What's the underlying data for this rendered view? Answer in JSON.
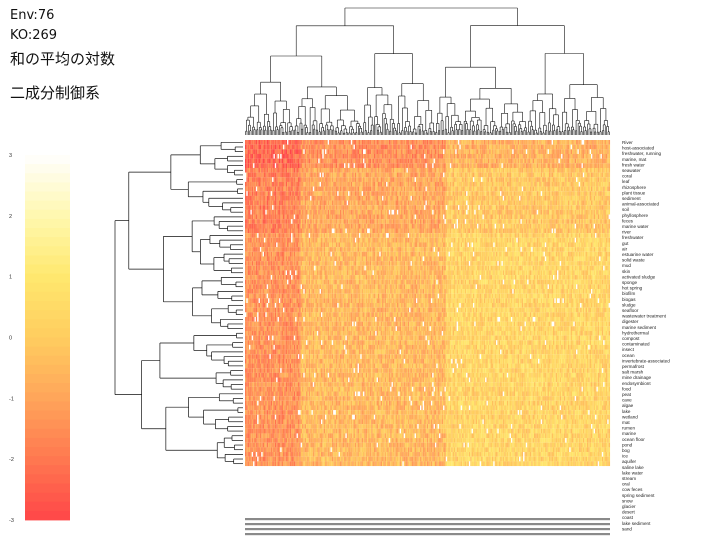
{
  "title_lines": {
    "env": "Env:76",
    "ko": "KO:269",
    "measure": "和の平均の対数",
    "method": "二成分制御系"
  },
  "chart_data": {
    "type": "heatmap",
    "title": "",
    "row_labels": [
      "River",
      "host-associated",
      "freshwater, running",
      "marine, mat",
      "fresh water",
      "seawater",
      "coral",
      "leaf",
      "rhizosphere",
      "plant tissue",
      "sediment",
      "animal-associated",
      "soil",
      "phyllosphere",
      "feces",
      "marine water",
      "river",
      "freshwater",
      "gut",
      "air",
      "estuarine water",
      "solid waste",
      "mud",
      "skin",
      "activated sludge",
      "sponge",
      "hot spring",
      "biofilm",
      "biogas",
      "sludge",
      "seafloor",
      "wastewater treatment",
      "digester",
      "marine sediment",
      "hydrothermal",
      "compost",
      "contaminated",
      "insect",
      "ocean",
      "invertebrate-associated",
      "permafrost",
      "salt marsh",
      "mine drainage",
      "endosymbiont",
      "food",
      "peat",
      "cave",
      "algae",
      "lake",
      "wetland",
      "mat",
      "rumen",
      "marine",
      "ocean floor",
      "pond",
      "bog",
      "ice",
      "aquifer",
      "saline lake",
      "lake water",
      "stream",
      "oral",
      "cow feces",
      "spring sediment",
      "snow",
      "glacier",
      "desert",
      "coast",
      "lake sediment",
      "sand"
    ],
    "col_count": 269,
    "color_scale": {
      "min": -3,
      "max": 3,
      "ticks": [
        "-3",
        "-2",
        "-1",
        "0",
        "1",
        "2",
        "3"
      ],
      "colors": [
        "#ff4a4a",
        "#ff6a48",
        "#ff9a58",
        "#ffc070",
        "#ffe060",
        "#fff6a8",
        "#ffffff"
      ]
    },
    "grid": false,
    "legend": "left"
  }
}
